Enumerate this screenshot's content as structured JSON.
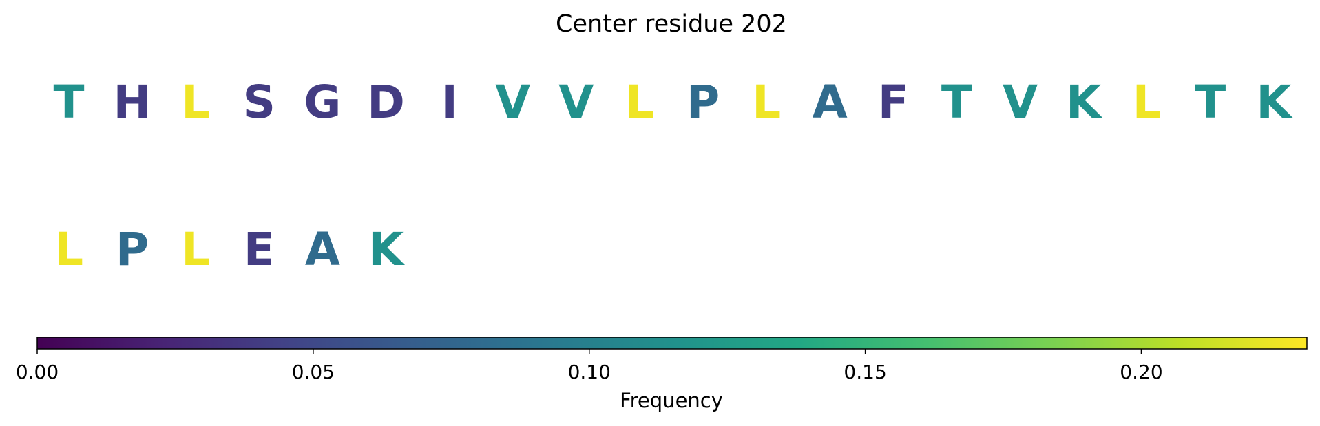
{
  "chart_data": {
    "type": "heatmap",
    "title": "Center residue 202",
    "residues": [
      {
        "letter": "T",
        "frequency": 0.115
      },
      {
        "letter": "H",
        "frequency": 0.04
      },
      {
        "letter": "L",
        "frequency": 0.225
      },
      {
        "letter": "S",
        "frequency": 0.04
      },
      {
        "letter": "G",
        "frequency": 0.04
      },
      {
        "letter": "D",
        "frequency": 0.04
      },
      {
        "letter": "I",
        "frequency": 0.04
      },
      {
        "letter": "V",
        "frequency": 0.115
      },
      {
        "letter": "V",
        "frequency": 0.115
      },
      {
        "letter": "L",
        "frequency": 0.225
      },
      {
        "letter": "P",
        "frequency": 0.08
      },
      {
        "letter": "L",
        "frequency": 0.225
      },
      {
        "letter": "A",
        "frequency": 0.08
      },
      {
        "letter": "F",
        "frequency": 0.04
      },
      {
        "letter": "T",
        "frequency": 0.115
      },
      {
        "letter": "V",
        "frequency": 0.115
      },
      {
        "letter": "K",
        "frequency": 0.115
      },
      {
        "letter": "L",
        "frequency": 0.225
      },
      {
        "letter": "T",
        "frequency": 0.115
      },
      {
        "letter": "K",
        "frequency": 0.115
      },
      {
        "letter": "L",
        "frequency": 0.225
      },
      {
        "letter": "P",
        "frequency": 0.08
      },
      {
        "letter": "L",
        "frequency": 0.225
      },
      {
        "letter": "E",
        "frequency": 0.04
      },
      {
        "letter": "A",
        "frequency": 0.08
      },
      {
        "letter": "K",
        "frequency": 0.115
      }
    ],
    "residues_per_row": 20,
    "colormap": "viridis",
    "colorbar": {
      "label": "Frequency",
      "range": [
        0.0,
        0.23
      ],
      "ticks": [
        0.0,
        0.05,
        0.1,
        0.15,
        0.2
      ],
      "tick_labels": [
        "0.00",
        "0.05",
        "0.10",
        "0.15",
        "0.20"
      ]
    }
  }
}
